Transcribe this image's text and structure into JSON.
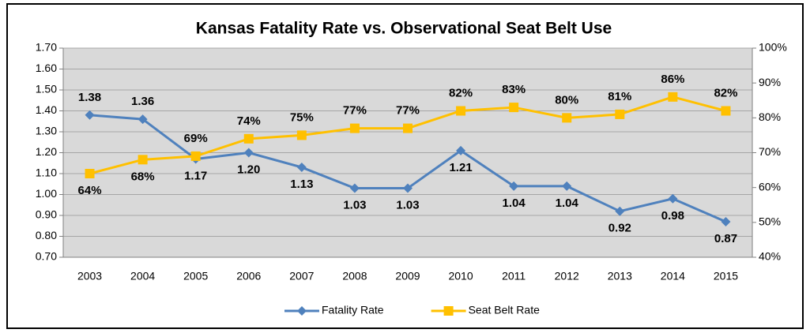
{
  "chart_data": {
    "type": "line",
    "title": "Kansas Fatality Rate vs. Observational Seat Belt Use",
    "categories": [
      "2003",
      "2004",
      "2005",
      "2006",
      "2007",
      "2008",
      "2009",
      "2010",
      "2011",
      "2012",
      "2013",
      "2014",
      "2015"
    ],
    "series": [
      {
        "name": "Fatality Rate",
        "color": "#4f81bd",
        "marker": "diamond",
        "values": [
          1.38,
          1.36,
          1.17,
          1.2,
          1.13,
          1.03,
          1.03,
          1.21,
          1.04,
          1.04,
          0.92,
          0.98,
          0.87
        ],
        "value_labels": [
          "1.38",
          "1.36",
          "1.17",
          "1.20",
          "1.13",
          "1.03",
          "1.03",
          "1.21",
          "1.04",
          "1.04",
          "0.92",
          "0.98",
          "0.87"
        ]
      },
      {
        "name": "Seat Belt Rate",
        "color": "#ffc000",
        "marker": "square",
        "axis": "y2",
        "values": [
          64,
          68,
          69,
          74,
          75,
          77,
          77,
          82,
          83,
          80,
          81,
          86,
          82
        ],
        "value_labels": [
          "64%",
          "68%",
          "69%",
          "74%",
          "75%",
          "77%",
          "77%",
          "82%",
          "83%",
          "80%",
          "81%",
          "86%",
          "82%"
        ]
      }
    ],
    "ylim": [
      0.7,
      1.7
    ],
    "yticks": [
      {
        "value": 0.7,
        "label": "0.70"
      },
      {
        "value": 0.8,
        "label": "0.80"
      },
      {
        "value": 0.9,
        "label": "0.90"
      },
      {
        "value": 1.0,
        "label": "1.00"
      },
      {
        "value": 1.1,
        "label": "1.10"
      },
      {
        "value": 1.2,
        "label": "1.20"
      },
      {
        "value": 1.3,
        "label": "1.30"
      },
      {
        "value": 1.4,
        "label": "1.40"
      },
      {
        "value": 1.5,
        "label": "1.50"
      },
      {
        "value": 1.6,
        "label": "1.60"
      },
      {
        "value": 1.7,
        "label": "1.70"
      }
    ],
    "y2lim": [
      40,
      100
    ],
    "y2ticks": [
      {
        "value": 40,
        "label": "40%"
      },
      {
        "value": 50,
        "label": "50%"
      },
      {
        "value": 60,
        "label": "60%"
      },
      {
        "value": 70,
        "label": "70%"
      },
      {
        "value": 80,
        "label": "80%"
      },
      {
        "value": 90,
        "label": "90%"
      },
      {
        "value": 100,
        "label": "100%"
      }
    ],
    "grid": true,
    "legend": "bottom"
  }
}
